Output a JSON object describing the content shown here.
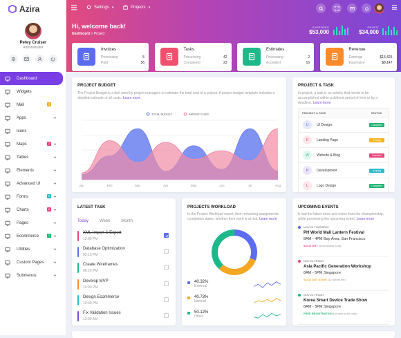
{
  "app": {
    "name": "Azira"
  },
  "profile": {
    "name": "Petey Cruiser",
    "role": "Administrator"
  },
  "menu": [
    {
      "label": "Dashboard",
      "icon": "monitor-icon",
      "active": true
    },
    {
      "label": "Widgets",
      "icon": "widget-icon"
    },
    {
      "label": "Mail",
      "icon": "mail-icon",
      "badge": "2",
      "badge_color": "#f5b21a"
    },
    {
      "label": "Apps",
      "icon": "apps-icon",
      "chevron": true
    },
    {
      "label": "Icons",
      "icon": "icons-icon"
    },
    {
      "label": "Maps",
      "icon": "map-icon",
      "badge": "2",
      "badge_color": "#e8457a",
      "chevron": true
    },
    {
      "label": "Tables",
      "icon": "table-icon",
      "chevron": true
    },
    {
      "label": "Elements",
      "icon": "elements-icon",
      "chevron": true
    },
    {
      "label": "Advanced UI",
      "icon": "advanced-icon",
      "chevron": true
    },
    {
      "label": "Forms",
      "icon": "forms-icon",
      "badge": "6",
      "badge_color": "#2bb9c8",
      "chevron": true
    },
    {
      "label": "Charts",
      "icon": "charts-icon",
      "badge": "6",
      "badge_color": "#e8457a",
      "chevron": true
    },
    {
      "label": "Pages",
      "icon": "pages-icon",
      "chevron": true
    },
    {
      "label": "Ecommerce",
      "icon": "cart-icon",
      "badge": "3",
      "badge_color": "#22b573",
      "chevron": true
    },
    {
      "label": "Utilities",
      "icon": "utilities-icon",
      "chevron": true
    },
    {
      "label": "Custom Pages",
      "icon": "custom-icon",
      "chevron": true
    },
    {
      "label": "Submenus",
      "icon": "submenu-icon",
      "chevron": true
    }
  ],
  "header": {
    "nav_settings": "Settings",
    "nav_projects": "Projects",
    "welcome": "Hi, welcome back!",
    "crumb_home": "Dashboard",
    "crumb_sep": ">",
    "crumb_current": "Project",
    "expenses_label": "EXPENSES",
    "expenses_value": "$53,000",
    "profit_label": "PROFIT",
    "profit_value": "$34,000"
  },
  "kpis": [
    {
      "title": "Invoices",
      "r1l": "Processing",
      "r1v": "5",
      "r2l": "Paid",
      "r2v": "56",
      "color": "#5c6cf0",
      "icon": "invoice-icon"
    },
    {
      "title": "Tasks",
      "r1l": "Processing",
      "r1v": "42",
      "r2l": "Completed",
      "r2v": "23",
      "color": "#f0506e",
      "icon": "tasks-icon"
    },
    {
      "title": "Estimates",
      "r1l": "Processing",
      "r1v": "2",
      "r2l": "Accepted",
      "r2v": "16",
      "color": "#1db98a",
      "icon": "alarm-icon"
    },
    {
      "title": "Revenue",
      "r1l": "Earnings",
      "r1v": "$15,425",
      "r2l": "Expensive",
      "r2v": "$8,147",
      "color": "#ff8a2a",
      "icon": "revenue-icon"
    }
  ],
  "project_budget": {
    "title": "PROJECT BUDGET",
    "desc": "The Project Budget is a tool used by project managers to estimate the total cost of a project. A project budget template includes a detailed estimate of all costs.",
    "learn": "Learn more"
  },
  "chart_data": {
    "type": "area",
    "categories": [
      "Jan",
      "Feb",
      "Mar",
      "Apr",
      "May",
      "Jun",
      "Jul",
      "Aug"
    ],
    "series": [
      {
        "name": "TOTAL BUDGET",
        "color": "#6a7ff0",
        "values": [
          15,
          70,
          150,
          25,
          100,
          30,
          150,
          25
        ]
      },
      {
        "name": "AMOUNT USED",
        "color": "#f08ba5",
        "values": [
          20,
          115,
          50,
          110,
          60,
          85,
          55,
          150
        ]
      }
    ],
    "ylim": [
      0,
      175
    ],
    "legend": "top-center"
  },
  "project_task": {
    "title": "PROJECT & TASK",
    "desc": "In project, a task is an activity that needs to be accomplished within a defined period of time or by a deadline.",
    "learn": "Learn more",
    "col1": "PROJECT & TASK",
    "col2": "STATUS",
    "rows": [
      {
        "letter": "U",
        "name": "UI Design",
        "status": "Completed",
        "color": "#22b573",
        "bg": "#e6e8fd",
        "fg": "#5c6cf0"
      },
      {
        "letter": "R",
        "name": "Landing Page",
        "status": "Pending",
        "color": "#f5b21a",
        "bg": "#fde6ec",
        "fg": "#e8457a"
      },
      {
        "letter": "W",
        "name": "Website & Blog",
        "status": "Canceled",
        "color": "#e8457a",
        "bg": "#e0f7ee",
        "fg": "#1db98a"
      },
      {
        "letter": "P",
        "name": "Development",
        "status": "on-going",
        "color": "#2bb9c8",
        "bg": "#ece6fb",
        "fg": "#7a47d8"
      },
      {
        "letter": "L",
        "name": "Logo Design",
        "status": "Completed",
        "color": "#22b573",
        "bg": "#fde6ec",
        "fg": "#e8457a"
      }
    ]
  },
  "latest_task": {
    "title": "LATEST TASK",
    "tabs": [
      "Today",
      "Week",
      "Month"
    ],
    "items": [
      {
        "name": "XML Import & Export",
        "time": "12:00 PM",
        "color": "#e8457a",
        "done": true
      },
      {
        "name": "Database Optimization",
        "time": "02:13 PM",
        "color": "#5c6cf0",
        "done": false
      },
      {
        "name": "Create Wireframes",
        "time": "06:20 PM",
        "color": "#1db98a",
        "done": false
      },
      {
        "name": "Develop MVP",
        "time": "10:00 PM",
        "color": "#ff8a2a",
        "done": false
      },
      {
        "name": "Design Ecommerce",
        "time": "10:00 PM",
        "color": "#2bb9c8",
        "done": false
      },
      {
        "name": "Fix Validation Issues",
        "time": "12:00 AM",
        "color": "#7a47d8",
        "done": false
      }
    ]
  },
  "workload": {
    "title": "PROJECTS WORKLOAD",
    "desc": "In the Project Workload report, their remaining assignments, completion dates, whether their work is at risk.",
    "learn": "Learn more",
    "items": [
      {
        "value": "40.32%",
        "label": "External",
        "color": "#5c6cf0",
        "share": 40.32
      },
      {
        "value": "40.73%",
        "label": "Internal",
        "color": "#f5a623",
        "share": 40.73
      },
      {
        "value": "50.12%",
        "label": "Other",
        "color": "#1db98a",
        "share": 50.12
      }
    ]
  },
  "events": {
    "title": "UPCOMING EVENTS",
    "desc": "It had the latest news and notes from the championship, while previewing the upcoming event.",
    "learn": "Learn more",
    "items": [
      {
        "date": "NOV 20 THURSDAY",
        "name": "PH World Mall Lantern Festival",
        "time": "8AM - 4PM Bay Area, San Francisco",
        "status": "SOLD OUT",
        "note": "(5000 tickets sold)",
        "color": "#5c6cf0",
        "scolor": "#e8457a"
      },
      {
        "date": "NOV 23 FRIDAY",
        "name": "Asia Pacific Generation Workshop",
        "time": "8AM - 5PM Singapore",
        "status": "SOLD OUT SOON",
        "note": "(12 tickets left)",
        "color": "#e8457a",
        "scolor": "#f5a623"
      },
      {
        "date": "NOV 23 FRIDAY",
        "name": "Korea Smart Device Trade Show",
        "time": "8AM - 5PM Singapore",
        "status": "FREE REGISTRATION",
        "note": "(Limited seats only)",
        "color": "#1db98a",
        "scolor": "#22b573"
      }
    ]
  }
}
